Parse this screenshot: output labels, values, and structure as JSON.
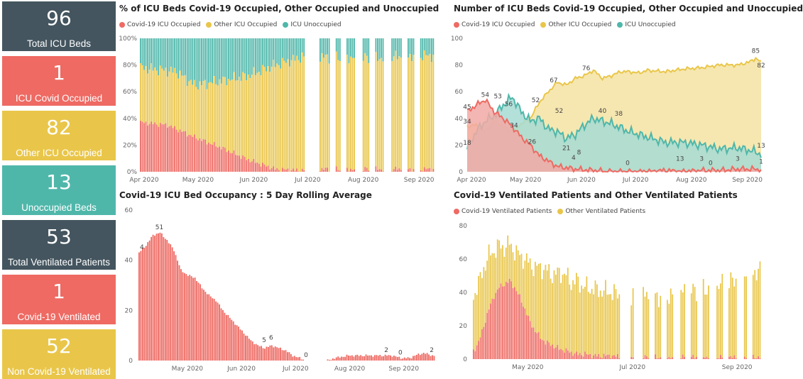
{
  "colors": {
    "dark": "#44555f",
    "red": "#ee6a63",
    "yellow": "#e9c64a",
    "teal": "#4fb7aa",
    "red_fill": "#f2a9a4",
    "yellow_fill": "#f5e3a3",
    "teal_fill": "#a7dbd3"
  },
  "kpis": [
    {
      "value": "96",
      "label": "Total ICU Beds",
      "color": "#44555f"
    },
    {
      "value": "1",
      "label": "ICU Covid Occupied",
      "color": "#ee6a63"
    },
    {
      "value": "82",
      "label": "Other ICU Occupied",
      "color": "#e9c64a"
    },
    {
      "value": "13",
      "label": "Unoccupied Beds",
      "color": "#4fb7aa"
    },
    {
      "value": "53",
      "label": "Total Ventilated Patients",
      "color": "#44555f"
    },
    {
      "value": "1",
      "label": "Covid-19 Ventilated",
      "color": "#ee6a63"
    },
    {
      "value": "52",
      "label": "Non Covid-19 Ventilated",
      "color": "#e9c64a"
    }
  ],
  "chart_data": [
    {
      "id": "pct",
      "type": "bar",
      "stacked": "100%",
      "title": "% of ICU Beds Covid-19 Occupied, Other Occupied and Unoccupied",
      "series": [
        {
          "name": "Covid-19 ICU Occupied"
        },
        {
          "name": "Other ICU Occupied"
        },
        {
          "name": "ICU Unoccupied"
        }
      ],
      "y_ticks": [
        "0%",
        "20%",
        "40%",
        "60%",
        "80%",
        "100%"
      ],
      "x_ticks": [
        "Apr 2020",
        "May 2020",
        "Jun 2020",
        "Jul 2020",
        "Aug 2020",
        "Sep 2020"
      ],
      "covid_pct": [
        [
          0,
          37
        ],
        [
          15,
          35
        ],
        [
          30,
          26
        ],
        [
          45,
          18
        ],
        [
          60,
          9
        ],
        [
          75,
          2
        ],
        [
          88,
          1
        ],
        [
          100,
          2
        ],
        [
          120,
          2
        ],
        [
          135,
          2
        ],
        [
          150,
          2
        ],
        [
          163,
          2
        ]
      ],
      "unocc_pct": [
        [
          0,
          22
        ],
        [
          20,
          25
        ],
        [
          30,
          35
        ],
        [
          45,
          32
        ],
        [
          60,
          28
        ],
        [
          75,
          20
        ],
        [
          90,
          14
        ],
        [
          110,
          14
        ],
        [
          130,
          15
        ],
        [
          150,
          13
        ],
        [
          163,
          13
        ]
      ],
      "gaps": [
        [
          92,
          99
        ],
        [
          106,
          108
        ],
        [
          112,
          114
        ],
        [
          120,
          123
        ],
        [
          128,
          130
        ],
        [
          136,
          139
        ],
        [
          146,
          148
        ],
        [
          153,
          155
        ]
      ]
    },
    {
      "id": "num",
      "type": "area",
      "title": "Number of ICU Beds Covid-19 Occupied, Other Occupied and Unoccupied",
      "series": [
        {
          "name": "Covid-19 ICU Occupied",
          "points": [
            [
              0,
              45
            ],
            [
              5,
              50
            ],
            [
              10,
              54
            ],
            [
              15,
              45
            ],
            [
              20,
              40
            ],
            [
              25,
              34
            ],
            [
              30,
              26
            ],
            [
              35,
              20
            ],
            [
              40,
              12
            ],
            [
              45,
              8
            ],
            [
              50,
              4
            ],
            [
              55,
              3
            ],
            [
              60,
              2
            ],
            [
              70,
              1
            ],
            [
              80,
              0
            ],
            [
              90,
              0
            ],
            [
              100,
              0
            ],
            [
              110,
              1
            ],
            [
              120,
              0
            ],
            [
              130,
              1
            ],
            [
              140,
              1
            ],
            [
              150,
              2
            ],
            [
              160,
              2
            ],
            [
              163,
              1
            ]
          ]
        },
        {
          "name": "Other ICU Occupied",
          "points": [
            [
              0,
              34
            ],
            [
              5,
              35
            ],
            [
              10,
              30
            ],
            [
              15,
              38
            ],
            [
              20,
              34
            ],
            [
              25,
              30
            ],
            [
              30,
              36
            ],
            [
              35,
              40
            ],
            [
              40,
              52
            ],
            [
              45,
              60
            ],
            [
              50,
              67
            ],
            [
              55,
              65
            ],
            [
              60,
              70
            ],
            [
              65,
              72
            ],
            [
              70,
              76
            ],
            [
              75,
              70
            ],
            [
              80,
              72
            ],
            [
              85,
              75
            ],
            [
              90,
              75
            ],
            [
              95,
              74
            ],
            [
              100,
              76
            ],
            [
              110,
              75
            ],
            [
              120,
              77
            ],
            [
              130,
              78
            ],
            [
              140,
              80
            ],
            [
              150,
              80
            ],
            [
              156,
              82
            ],
            [
              160,
              85
            ],
            [
              163,
              82
            ]
          ]
        },
        {
          "name": "ICU Unoccupied",
          "points": [
            [
              0,
              18
            ],
            [
              5,
              30
            ],
            [
              10,
              38
            ],
            [
              15,
              42
            ],
            [
              20,
              50
            ],
            [
              25,
              56
            ],
            [
              30,
              45
            ],
            [
              35,
              38
            ],
            [
              40,
              40
            ],
            [
              45,
              32
            ],
            [
              50,
              30
            ],
            [
              55,
              25
            ],
            [
              60,
              28
            ],
            [
              65,
              35
            ],
            [
              70,
              40
            ],
            [
              75,
              38
            ],
            [
              80,
              36
            ],
            [
              85,
              33
            ],
            [
              90,
              30
            ],
            [
              95,
              28
            ],
            [
              100,
              26
            ],
            [
              110,
              22
            ],
            [
              120,
              22
            ],
            [
              130,
              20
            ],
            [
              140,
              17
            ],
            [
              150,
              18
            ],
            [
              160,
              15
            ],
            [
              163,
              13
            ]
          ]
        }
      ],
      "labels": [
        {
          "x": 0,
          "y": 45,
          "text": "45"
        },
        {
          "x": 0,
          "y": 34,
          "text": "34"
        },
        {
          "x": 0,
          "y": 18,
          "text": "18"
        },
        {
          "x": 10,
          "y": 54,
          "text": "54"
        },
        {
          "x": 17,
          "y": 53,
          "text": "53"
        },
        {
          "x": 23,
          "y": 47,
          "text": "56"
        },
        {
          "x": 26,
          "y": 31,
          "text": "34"
        },
        {
          "x": 36,
          "y": 19,
          "text": "26"
        },
        {
          "x": 38,
          "y": 50,
          "text": "52"
        },
        {
          "x": 48,
          "y": 65,
          "text": "67"
        },
        {
          "x": 51,
          "y": 42,
          "text": "52"
        },
        {
          "x": 55,
          "y": 14,
          "text": "21"
        },
        {
          "x": 59,
          "y": 7,
          "text": "4"
        },
        {
          "x": 62,
          "y": 11,
          "text": "8"
        },
        {
          "x": 66,
          "y": 74,
          "text": "76"
        },
        {
          "x": 75,
          "y": 42,
          "text": "40"
        },
        {
          "x": 84,
          "y": 40,
          "text": "38"
        },
        {
          "x": 89,
          "y": 3,
          "text": "0"
        },
        {
          "x": 118,
          "y": 6,
          "text": "13"
        },
        {
          "x": 130,
          "y": 6,
          "text": "3"
        },
        {
          "x": 135,
          "y": 3,
          "text": "0"
        },
        {
          "x": 150,
          "y": 6,
          "text": "3"
        },
        {
          "x": 160,
          "y": 87,
          "text": "85"
        },
        {
          "x": 163,
          "y": 76,
          "text": "82"
        },
        {
          "x": 163,
          "y": 16,
          "text": "13"
        },
        {
          "x": 163,
          "y": 4,
          "text": "1"
        }
      ],
      "y_ticks": [
        0,
        20,
        40,
        60,
        80,
        100
      ],
      "x_ticks": [
        "Apr 2020",
        "May 2020",
        "Jun 2020",
        "Jul 2020",
        "Aug 2020",
        "Sep 2020"
      ]
    },
    {
      "id": "roll",
      "type": "bar",
      "title": "Covid-19 ICU Bed Occupancy : 5 Day Rolling Average",
      "points": [
        [
          0,
          43
        ],
        [
          4,
          46
        ],
        [
          8,
          50
        ],
        [
          12,
          51
        ],
        [
          16,
          48
        ],
        [
          20,
          44
        ],
        [
          24,
          36
        ],
        [
          28,
          34
        ],
        [
          32,
          33
        ],
        [
          36,
          29
        ],
        [
          40,
          26
        ],
        [
          44,
          24
        ],
        [
          48,
          20
        ],
        [
          52,
          17
        ],
        [
          56,
          14
        ],
        [
          60,
          11
        ],
        [
          64,
          8
        ],
        [
          68,
          6
        ],
        [
          72,
          5
        ],
        [
          76,
          6
        ],
        [
          80,
          5
        ],
        [
          84,
          4
        ],
        [
          88,
          2
        ],
        [
          92,
          1
        ],
        [
          96,
          0
        ],
        [
          100,
          0
        ],
        [
          106,
          0
        ],
        [
          108,
          0
        ],
        [
          112,
          1
        ],
        [
          120,
          2
        ],
        [
          130,
          2
        ],
        [
          140,
          2
        ],
        [
          145,
          2
        ],
        [
          150,
          1
        ],
        [
          155,
          1
        ],
        [
          158,
          2
        ],
        [
          163,
          3
        ],
        [
          168,
          2
        ]
      ],
      "gaps": [
        [
          95,
          107
        ]
      ],
      "labels": [
        {
          "x": 2,
          "y": 43,
          "text": "4"
        },
        {
          "x": 12,
          "y": 51,
          "text": "51"
        },
        {
          "x": 72,
          "y": 6,
          "text": "5"
        },
        {
          "x": 76,
          "y": 7,
          "text": "6"
        },
        {
          "x": 96,
          "y": 0,
          "text": "0"
        },
        {
          "x": 142,
          "y": 2,
          "text": "2"
        },
        {
          "x": 150,
          "y": 1,
          "text": "0"
        },
        {
          "x": 168,
          "y": 2,
          "text": "2"
        }
      ],
      "y_ticks": [
        0,
        20,
        40,
        60
      ],
      "x_ticks": [
        "May 2020",
        "Jun 2020",
        "Jul 2020",
        "Aug 2020",
        "Sep 2020"
      ]
    },
    {
      "id": "vent",
      "type": "bar",
      "stacked": true,
      "title": "Covid-19 Ventilated Patients and Other Ventilated Patients",
      "series": [
        {
          "name": "Covid-19 Ventilated Patients",
          "points": [
            [
              0,
              5
            ],
            [
              3,
              10
            ],
            [
              6,
              20
            ],
            [
              9,
              30
            ],
            [
              12,
              38
            ],
            [
              15,
              43
            ],
            [
              18,
              45
            ],
            [
              21,
              47
            ],
            [
              24,
              43
            ],
            [
              27,
              37
            ],
            [
              30,
              30
            ],
            [
              33,
              22
            ],
            [
              36,
              17
            ],
            [
              39,
              13
            ],
            [
              42,
              10
            ],
            [
              45,
              9
            ],
            [
              48,
              7
            ],
            [
              51,
              6
            ],
            [
              54,
              5
            ],
            [
              57,
              4
            ],
            [
              60,
              3
            ],
            [
              65,
              3
            ],
            [
              70,
              2
            ],
            [
              80,
              2
            ],
            [
              90,
              1
            ],
            [
              100,
              1
            ],
            [
              110,
              1
            ],
            [
              120,
              1
            ],
            [
              130,
              1
            ],
            [
              140,
              1
            ],
            [
              150,
              1
            ],
            [
              160,
              1
            ],
            [
              166,
              1
            ]
          ]
        },
        {
          "name": "Other Ventilated Patients",
          "points": [
            [
              0,
              33
            ],
            [
              3,
              35
            ],
            [
              6,
              35
            ],
            [
              9,
              32
            ],
            [
              12,
              27
            ],
            [
              15,
              25
            ],
            [
              18,
              22
            ],
            [
              21,
              22
            ],
            [
              24,
              22
            ],
            [
              27,
              25
            ],
            [
              30,
              30
            ],
            [
              33,
              35
            ],
            [
              36,
              38
            ],
            [
              39,
              42
            ],
            [
              42,
              44
            ],
            [
              45,
              42
            ],
            [
              48,
              44
            ],
            [
              51,
              46
            ],
            [
              54,
              45
            ],
            [
              57,
              42
            ],
            [
              60,
              44
            ],
            [
              65,
              40
            ],
            [
              70,
              40
            ],
            [
              80,
              38
            ],
            [
              90,
              36
            ],
            [
              100,
              37
            ],
            [
              110,
              37
            ],
            [
              120,
              38
            ],
            [
              130,
              40
            ],
            [
              140,
              42
            ],
            [
              150,
              45
            ],
            [
              160,
              50
            ],
            [
              166,
              52
            ]
          ]
        }
      ],
      "gaps": [
        [
          86,
          91
        ],
        [
          94,
          98
        ],
        [
          103,
          105
        ],
        [
          110,
          112
        ],
        [
          117,
          120
        ],
        [
          124,
          126
        ],
        [
          131,
          133
        ],
        [
          138,
          141
        ],
        [
          146,
          148
        ],
        [
          154,
          157
        ],
        [
          160,
          162
        ]
      ],
      "y_ticks": [
        0,
        20,
        40,
        60,
        80
      ],
      "x_ticks": [
        "May 2020",
        "Jul 2020",
        "Sep 2020"
      ]
    }
  ]
}
